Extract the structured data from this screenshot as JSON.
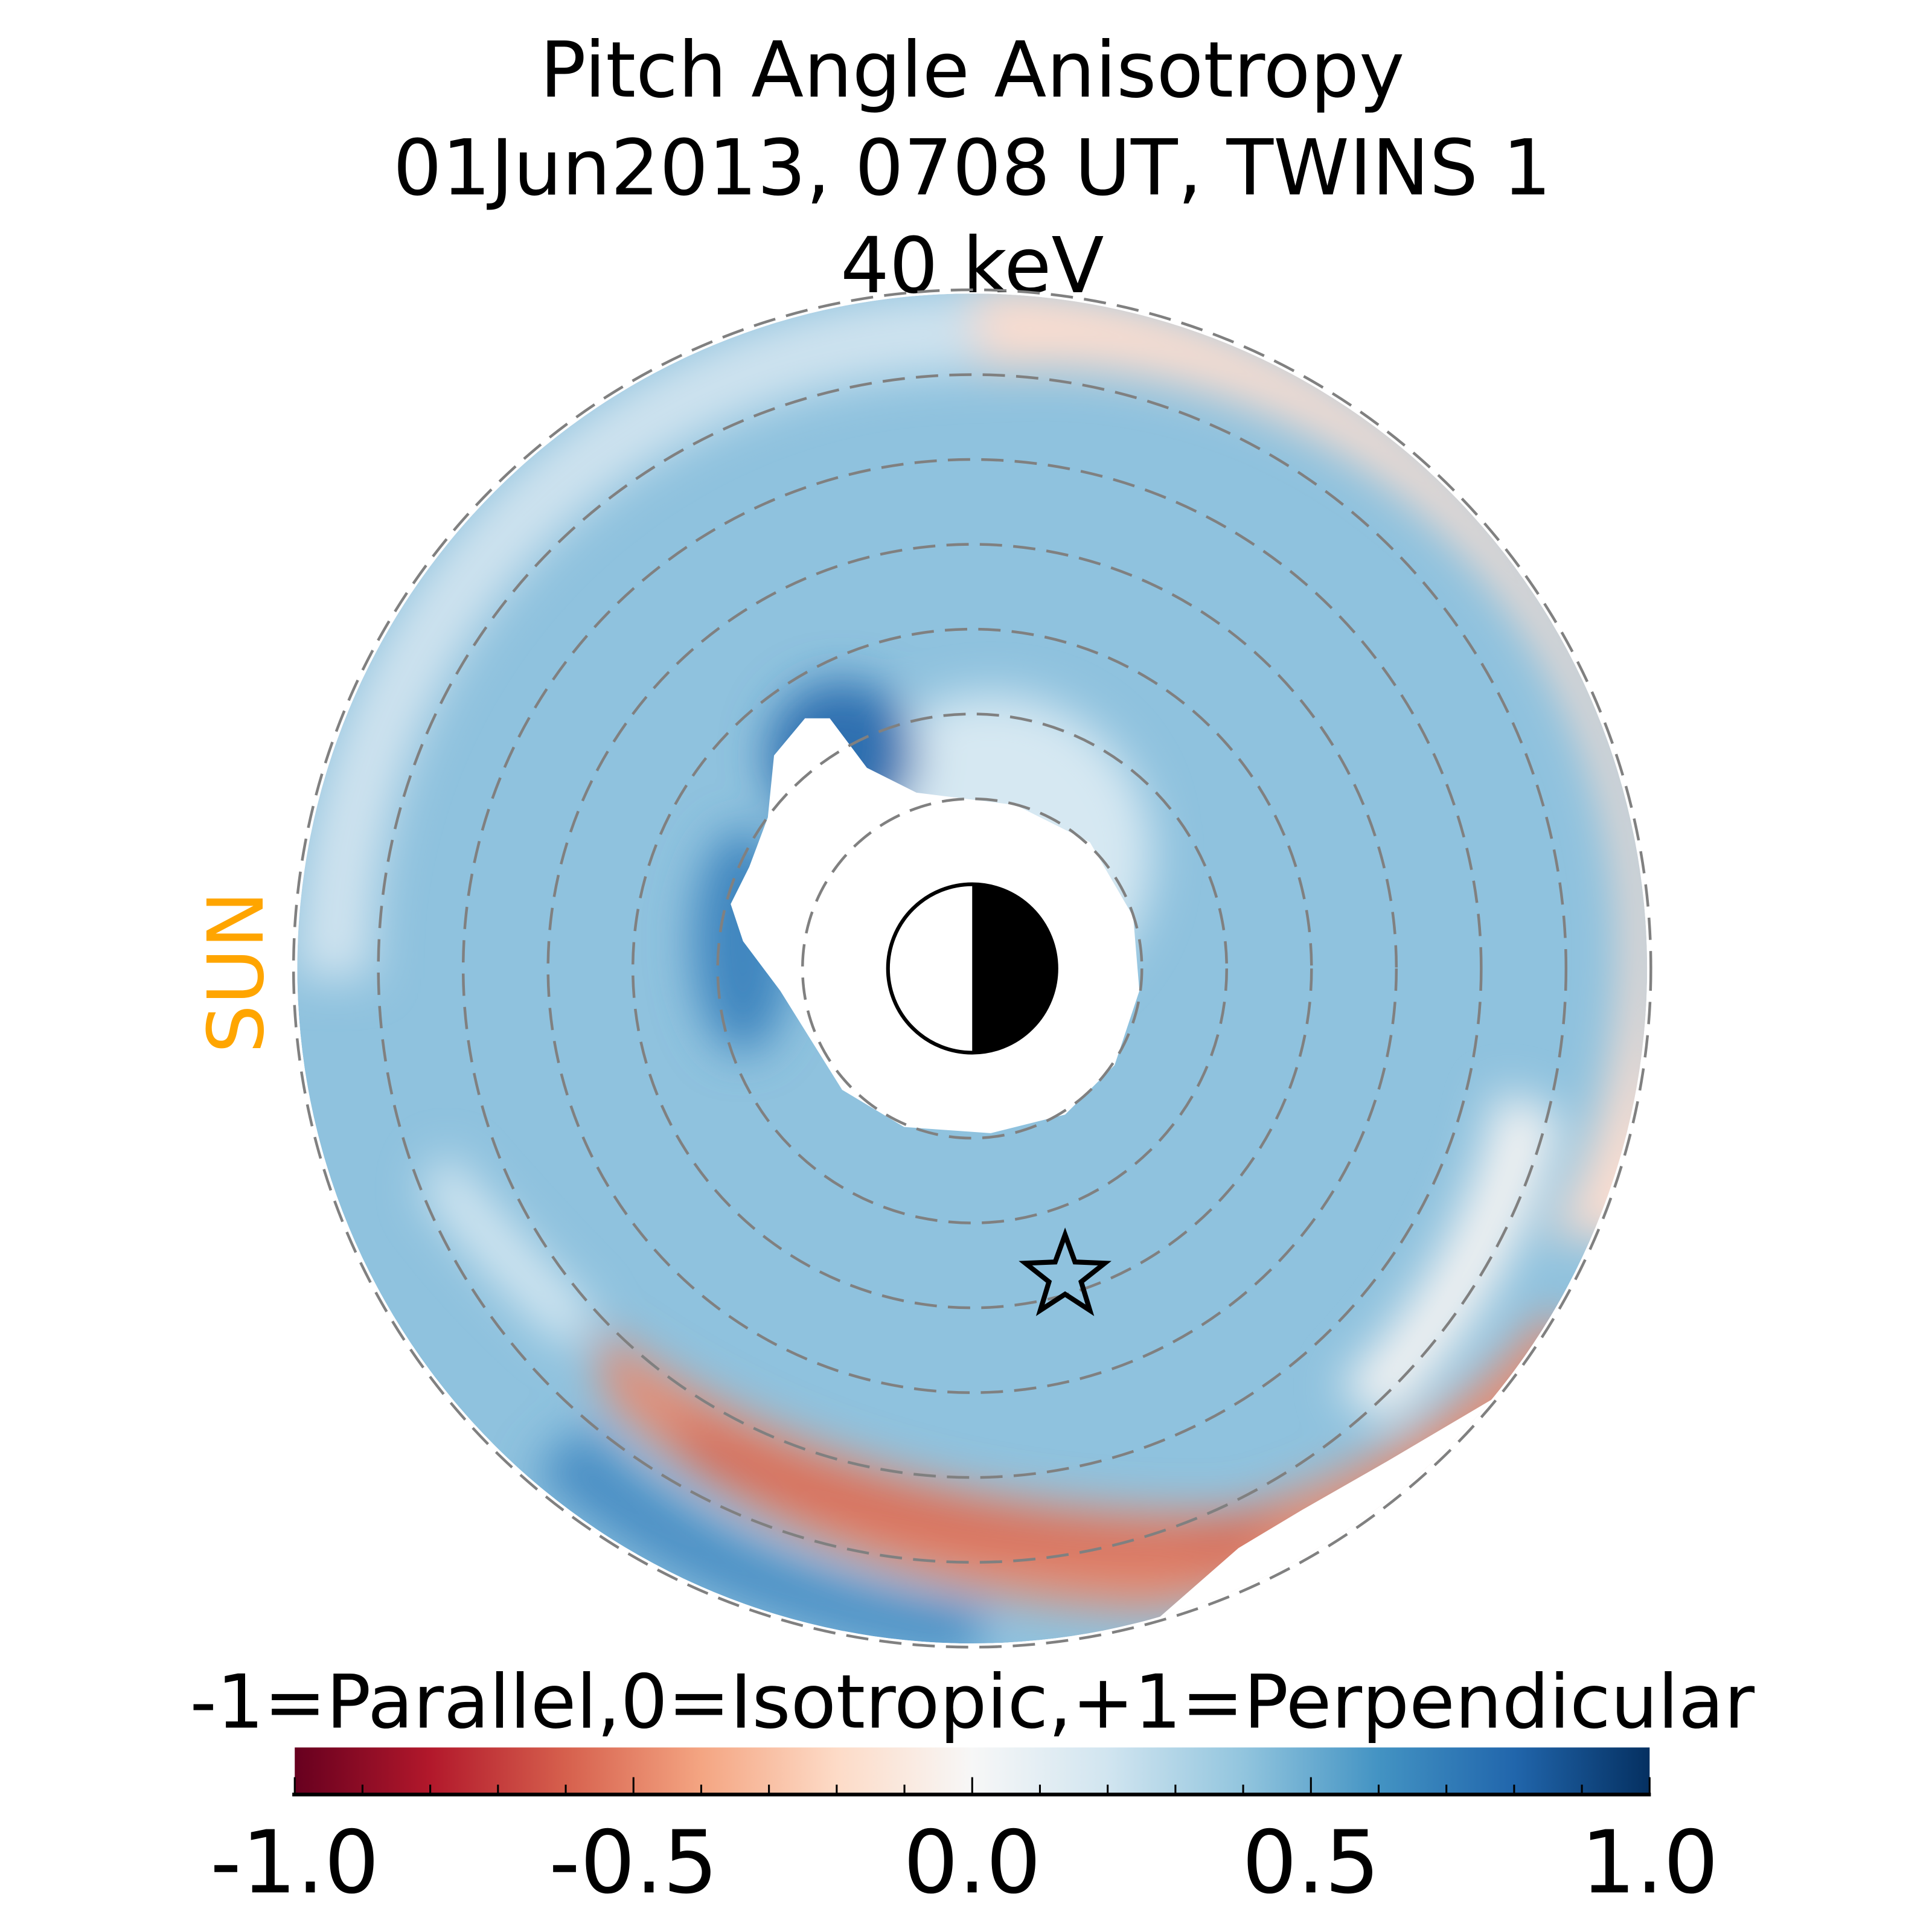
{
  "chart_data": {
    "type": "heatmap",
    "projection": "polar image of equatorial plane",
    "title_lines": [
      "Pitch Angle Anisotropy",
      "01Jun2013, 0708 UT,  TWINS 1",
      "40 keV"
    ],
    "sun_label": "SUN",
    "sun_color": "#FFA500",
    "dashed_circle_count": 7,
    "colorbar": {
      "label": "-1=Parallel,0=Isotropic,+1=Perpendicular",
      "range": [
        -1.0,
        1.0
      ],
      "colormap": "RdBu",
      "colors": [
        "#67001f",
        "#b2182b",
        "#d6604d",
        "#f4a582",
        "#fddbc7",
        "#f7f7f7",
        "#d1e5f0",
        "#92c5de",
        "#4393c3",
        "#2166ac",
        "#053061"
      ],
      "major_ticks": [
        -1.0,
        -0.5,
        0.0,
        0.5,
        1.0
      ],
      "tick_labels": [
        "-1.0",
        "-0.5",
        "0.0",
        "0.5",
        "1.0"
      ],
      "minor_tick_step": 0.1
    },
    "features": {
      "dominant_value": 0.35,
      "dusk_outer_ring_value": -0.15,
      "post_midnight_arc_value": -0.6,
      "inner_dawn_edge_value": 0.7
    }
  }
}
